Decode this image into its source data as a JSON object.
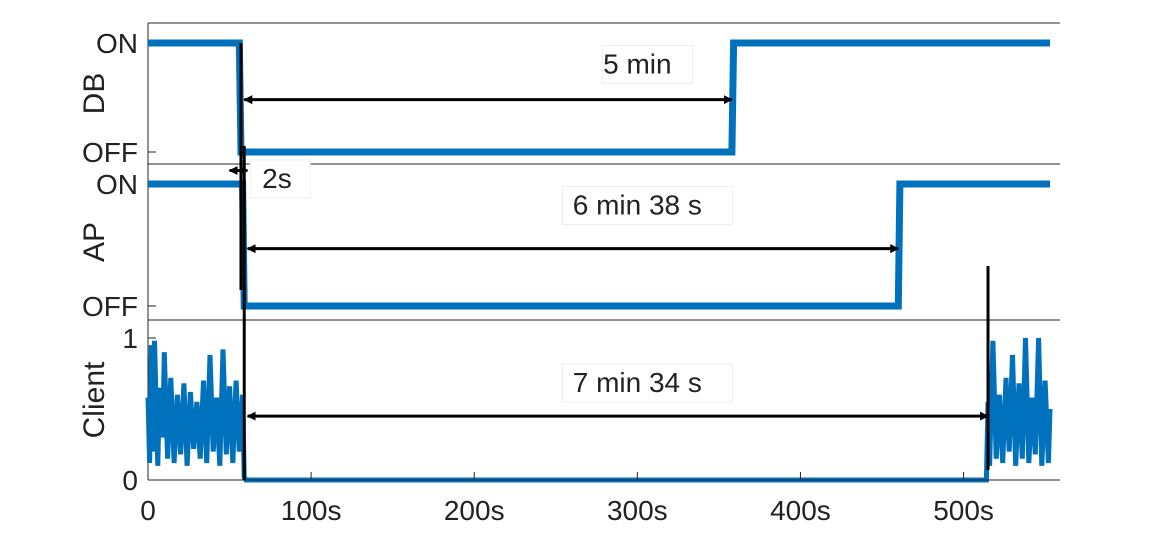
{
  "chart_data": {
    "type": "line",
    "xlim": [
      0,
      553
    ],
    "x_ticks": [
      0,
      100,
      200,
      300,
      400,
      500
    ],
    "x_tick_labels": [
      "0",
      "100s",
      "200s",
      "300s",
      "400s",
      "500s"
    ],
    "grid": false,
    "line_color": "#0072BD",
    "marker_color": "#000000",
    "markers_x": [
      57,
      59,
      515
    ],
    "panels": [
      {
        "id": "db",
        "ylabel": "DB",
        "y_tick_labels": [
          "OFF",
          "ON"
        ],
        "series": {
          "x": [
            0,
            56,
            57,
            358,
            359,
            553
          ],
          "y": [
            1,
            1,
            0,
            0,
            1,
            1
          ]
        }
      },
      {
        "id": "ap",
        "ylabel": "AP",
        "y_tick_labels": [
          "OFF",
          "ON"
        ],
        "series": {
          "x": [
            0,
            58,
            59,
            460,
            461,
            553
          ],
          "y": [
            1,
            1,
            0,
            0,
            1,
            1
          ]
        }
      },
      {
        "id": "client",
        "ylabel": "Client",
        "y_tick_labels": [
          "0",
          "1"
        ],
        "series": {
          "x": [
            0,
            1,
            2,
            3,
            4,
            6,
            7,
            9,
            10,
            12,
            14,
            16,
            18,
            20,
            22,
            24,
            26,
            28,
            30,
            32,
            34,
            36,
            38,
            40,
            42,
            44,
            46,
            48,
            50,
            52,
            54,
            56,
            58,
            59,
            60,
            514,
            515,
            516,
            518,
            520,
            522,
            524,
            526,
            528,
            530,
            532,
            534,
            536,
            538,
            540,
            542,
            544,
            546,
            548,
            550,
            552,
            553
          ],
          "y": [
            0.58,
            0.12,
            0.95,
            0.2,
            0.98,
            0.1,
            0.65,
            0.3,
            0.9,
            0.15,
            0.72,
            0.12,
            0.6,
            0.18,
            0.68,
            0.1,
            0.62,
            0.22,
            0.55,
            0.15,
            0.7,
            0.12,
            0.88,
            0.2,
            0.58,
            0.1,
            0.92,
            0.18,
            0.66,
            0.12,
            0.7,
            0.2,
            0.6,
            0.02,
            0,
            0,
            0.55,
            0.1,
            0.98,
            0.15,
            0.6,
            0.12,
            0.72,
            0.2,
            0.88,
            0.1,
            0.68,
            0.15,
            1.0,
            0.12,
            0.58,
            0.18,
            1.0,
            0.1,
            0.7,
            0.12,
            0.5
          ]
        }
      }
    ],
    "annotations": [
      {
        "panel": "db",
        "text": "5 min",
        "x1": 59,
        "x2": 358,
        "y": 0.48,
        "label_x": 300,
        "label_y": 0.72
      },
      {
        "panel": "db",
        "text": "2s",
        "x1": 50,
        "x2": 61,
        "y": -0.17,
        "label_x": 70,
        "label_y": -0.33
      },
      {
        "panel": "ap",
        "text": "6 min 38 s",
        "x1": 61,
        "x2": 460,
        "y": 0.47,
        "label_x": 300,
        "label_y": 0.75
      },
      {
        "panel": "client",
        "text": "7 min 34 s",
        "x1": 61,
        "x2": 515,
        "y": 0.45,
        "label_x": 300,
        "label_y": 0.62
      }
    ]
  }
}
